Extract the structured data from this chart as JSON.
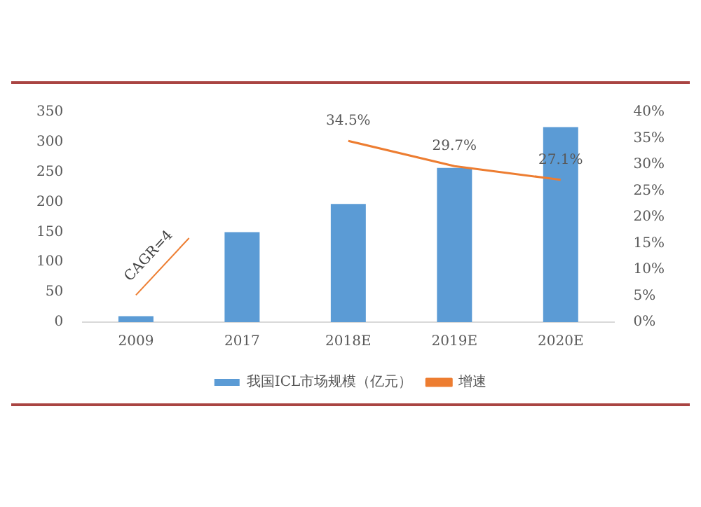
{
  "chart_data": {
    "type": "bar",
    "categories": [
      "2009",
      "2017",
      "2018E",
      "2019E",
      "2020E"
    ],
    "series": [
      {
        "name": "我国ICL市场规模（亿元）",
        "color": "#5b9bd5",
        "values": [
          10,
          150,
          197,
          257,
          325
        ]
      },
      {
        "name": "增速",
        "type": "line",
        "axis": "y2",
        "color": "#ed7d31",
        "values": [
          null,
          null,
          34.5,
          29.7,
          27.1
        ],
        "value_labels": [
          null,
          null,
          "34.5%",
          "29.7%",
          "27.1%"
        ]
      }
    ],
    "ylim": [
      0,
      350
    ],
    "yticks": [
      0,
      50,
      100,
      150,
      200,
      250,
      300,
      350
    ],
    "y2lim": [
      0,
      40
    ],
    "y2ticks": [
      {
        "value": 0,
        "label": "0%"
      },
      {
        "value": 5,
        "label": "5%"
      },
      {
        "value": 10,
        "label": "10%"
      },
      {
        "value": 15,
        "label": "15%"
      },
      {
        "value": 20,
        "label": "20%"
      },
      {
        "value": 25,
        "label": "25%"
      },
      {
        "value": 30,
        "label": "30%"
      },
      {
        "value": 35,
        "label": "35%"
      },
      {
        "value": 40,
        "label": "40%"
      }
    ],
    "annotations": [
      "CAGR=4"
    ],
    "grid": false,
    "legend": "bottom",
    "marker": "none",
    "line_style": "solid"
  }
}
